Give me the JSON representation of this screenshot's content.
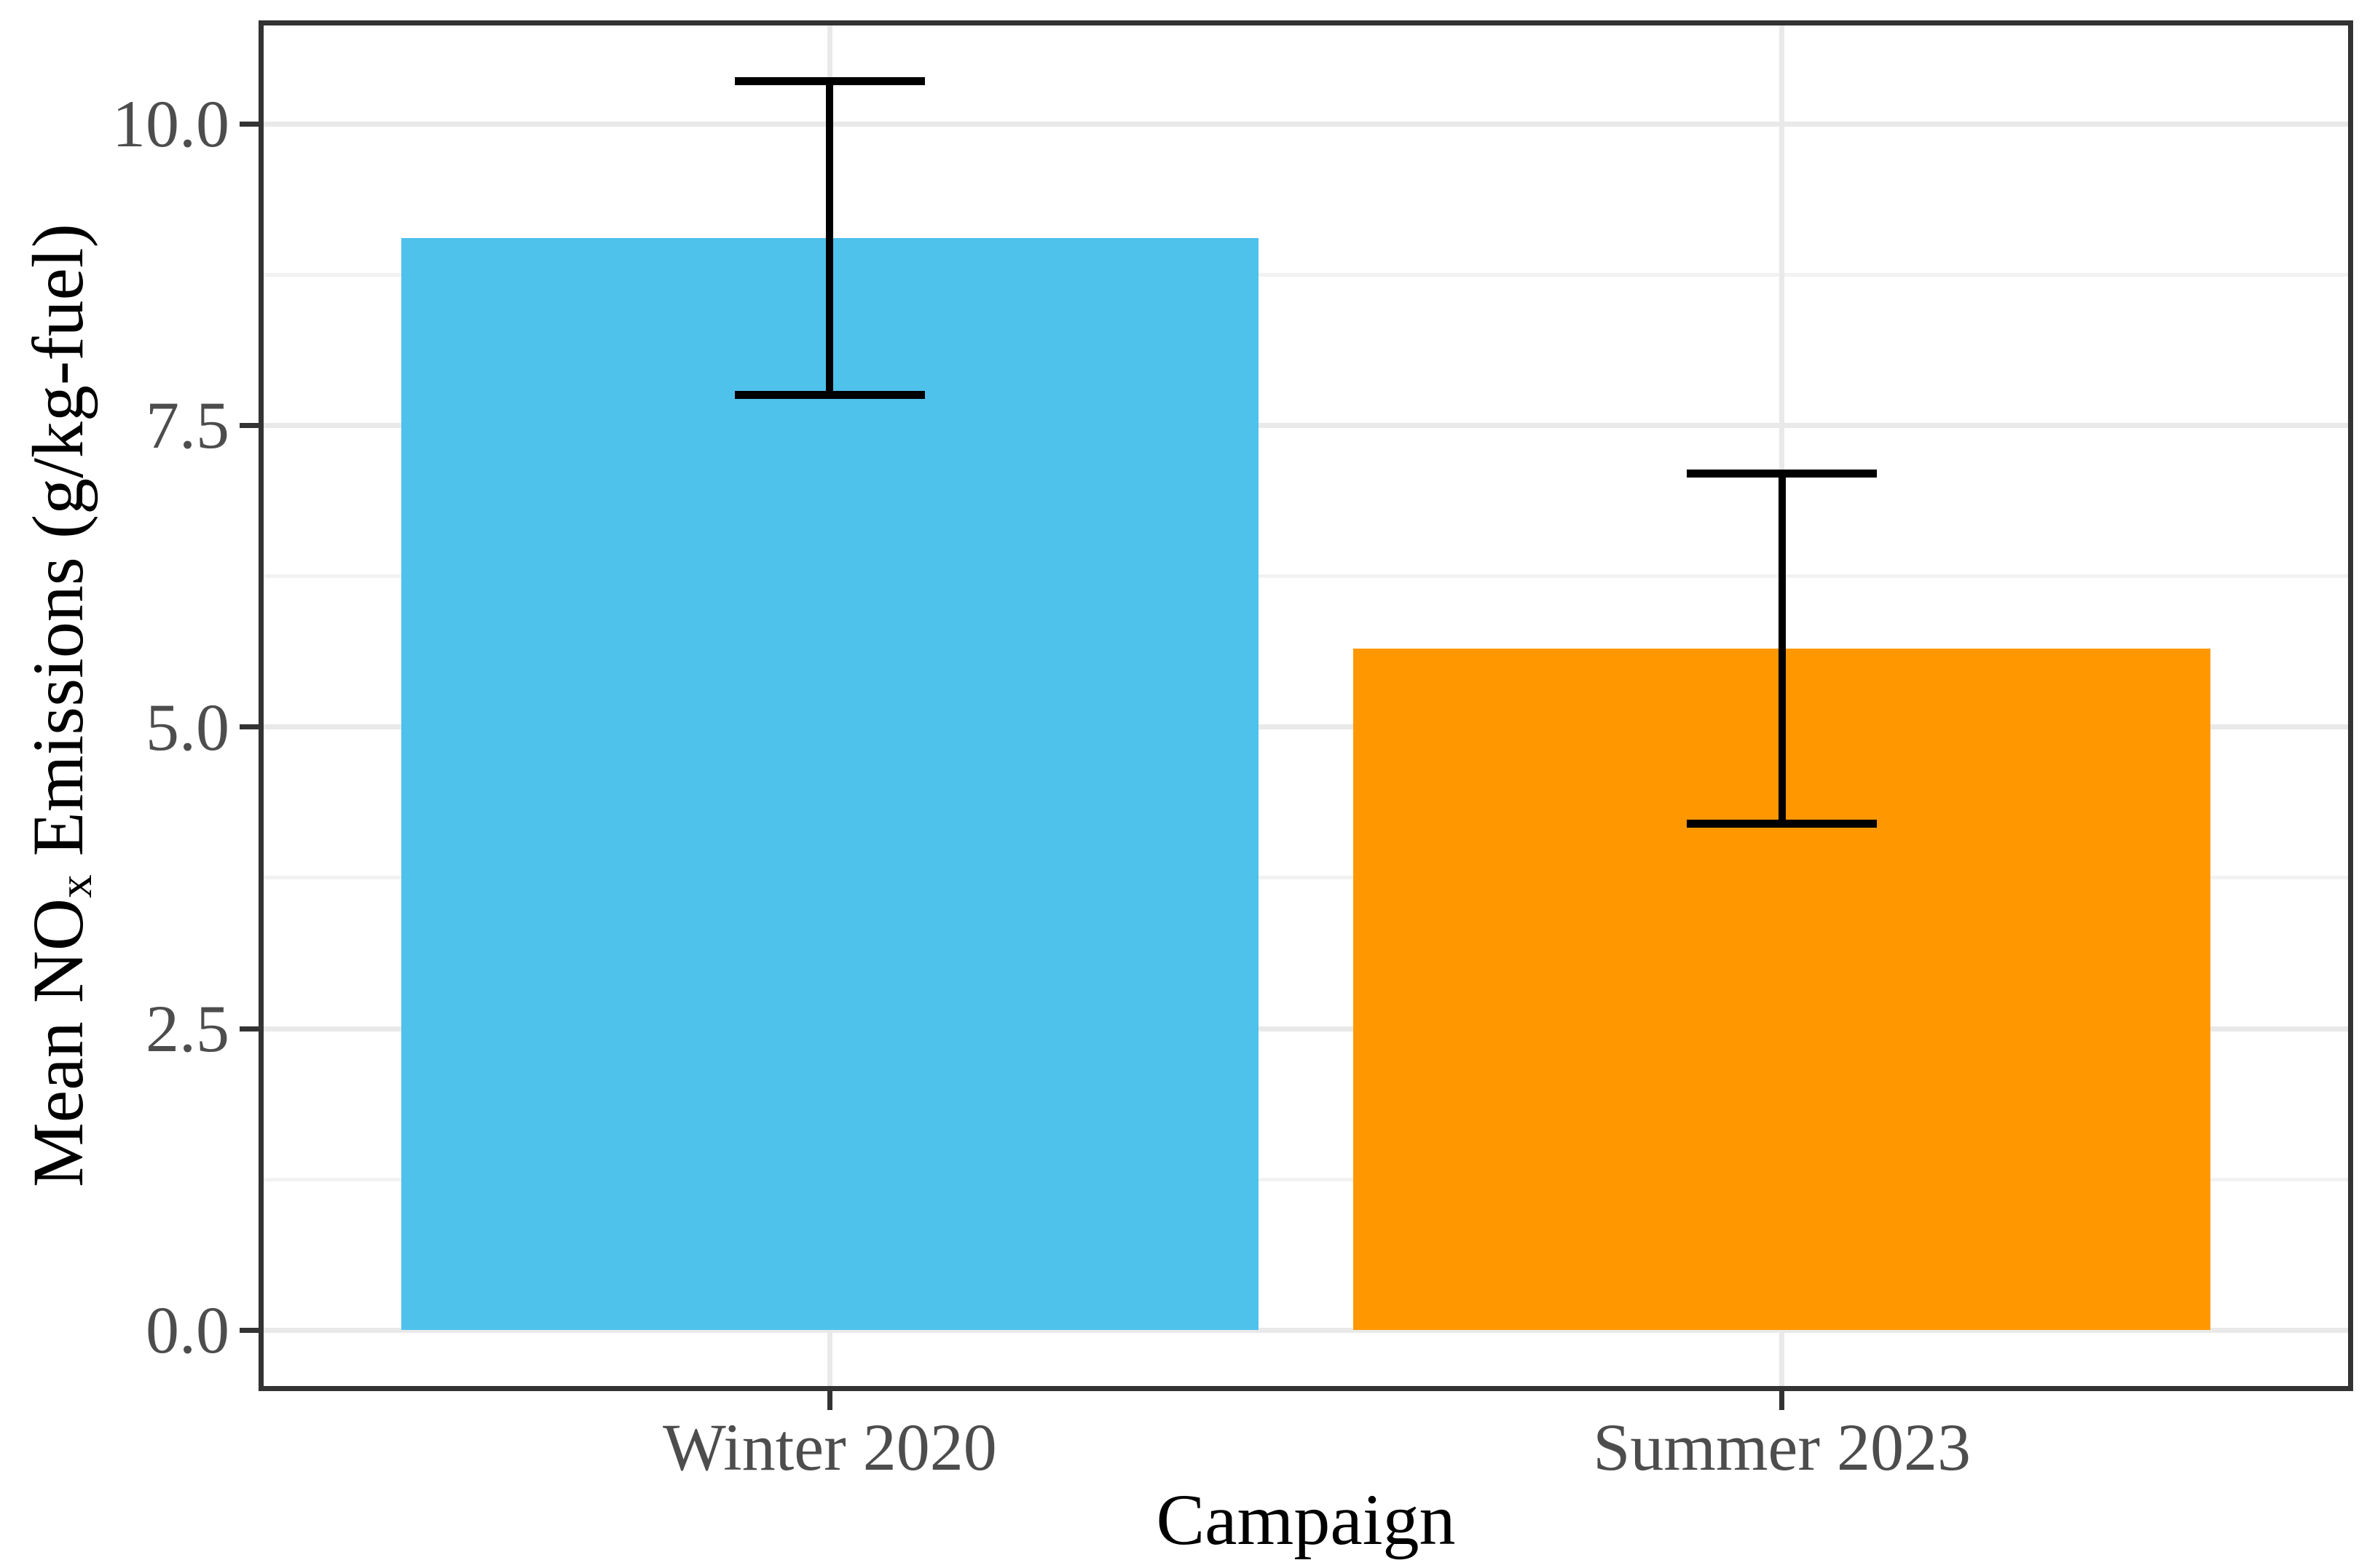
{
  "chart_data": {
    "type": "bar",
    "title": "",
    "xlabel": "Campaign",
    "ylabel": "Mean NOx Emissions (g/kg-fuel)",
    "ylabel_parts": {
      "prefix": "Mean NO",
      "subscript": "x",
      "suffix": " Emissions (g/kg-fuel)"
    },
    "categories": [
      "Winter 2020",
      "Summer 2023"
    ],
    "values": [
      9.05,
      5.65
    ],
    "error_bars": {
      "ymin": [
        7.75,
        4.2
      ],
      "ymax": [
        10.35,
        7.1
      ]
    },
    "bar_colors": [
      "#4FC2EC",
      "#FF9800"
    ],
    "y_axis": {
      "ticks": [
        0,
        2.5,
        5,
        7.5,
        10
      ],
      "tick_labels": [
        "0.0",
        "2.5",
        "5.0",
        "7.5",
        "10.0"
      ],
      "minor_ticks": [
        1.25,
        3.75,
        6.25,
        8.75
      ],
      "range": [
        -0.51,
        10.86
      ]
    },
    "grid": {
      "show": true,
      "major_color": "#E9E9E9",
      "minor_color": "#F2F2F2"
    },
    "legend_position": "none",
    "bar_width_fraction": 0.9,
    "errorbar_cap_fraction": 0.2,
    "styles": {
      "background": "#FFFFFF",
      "axis_text_color": "#4D4D4D",
      "axis_title_color": "#000000",
      "errorbar_color": "#000000",
      "panel_border_color": "#333333",
      "tick_color": "#333333"
    }
  }
}
